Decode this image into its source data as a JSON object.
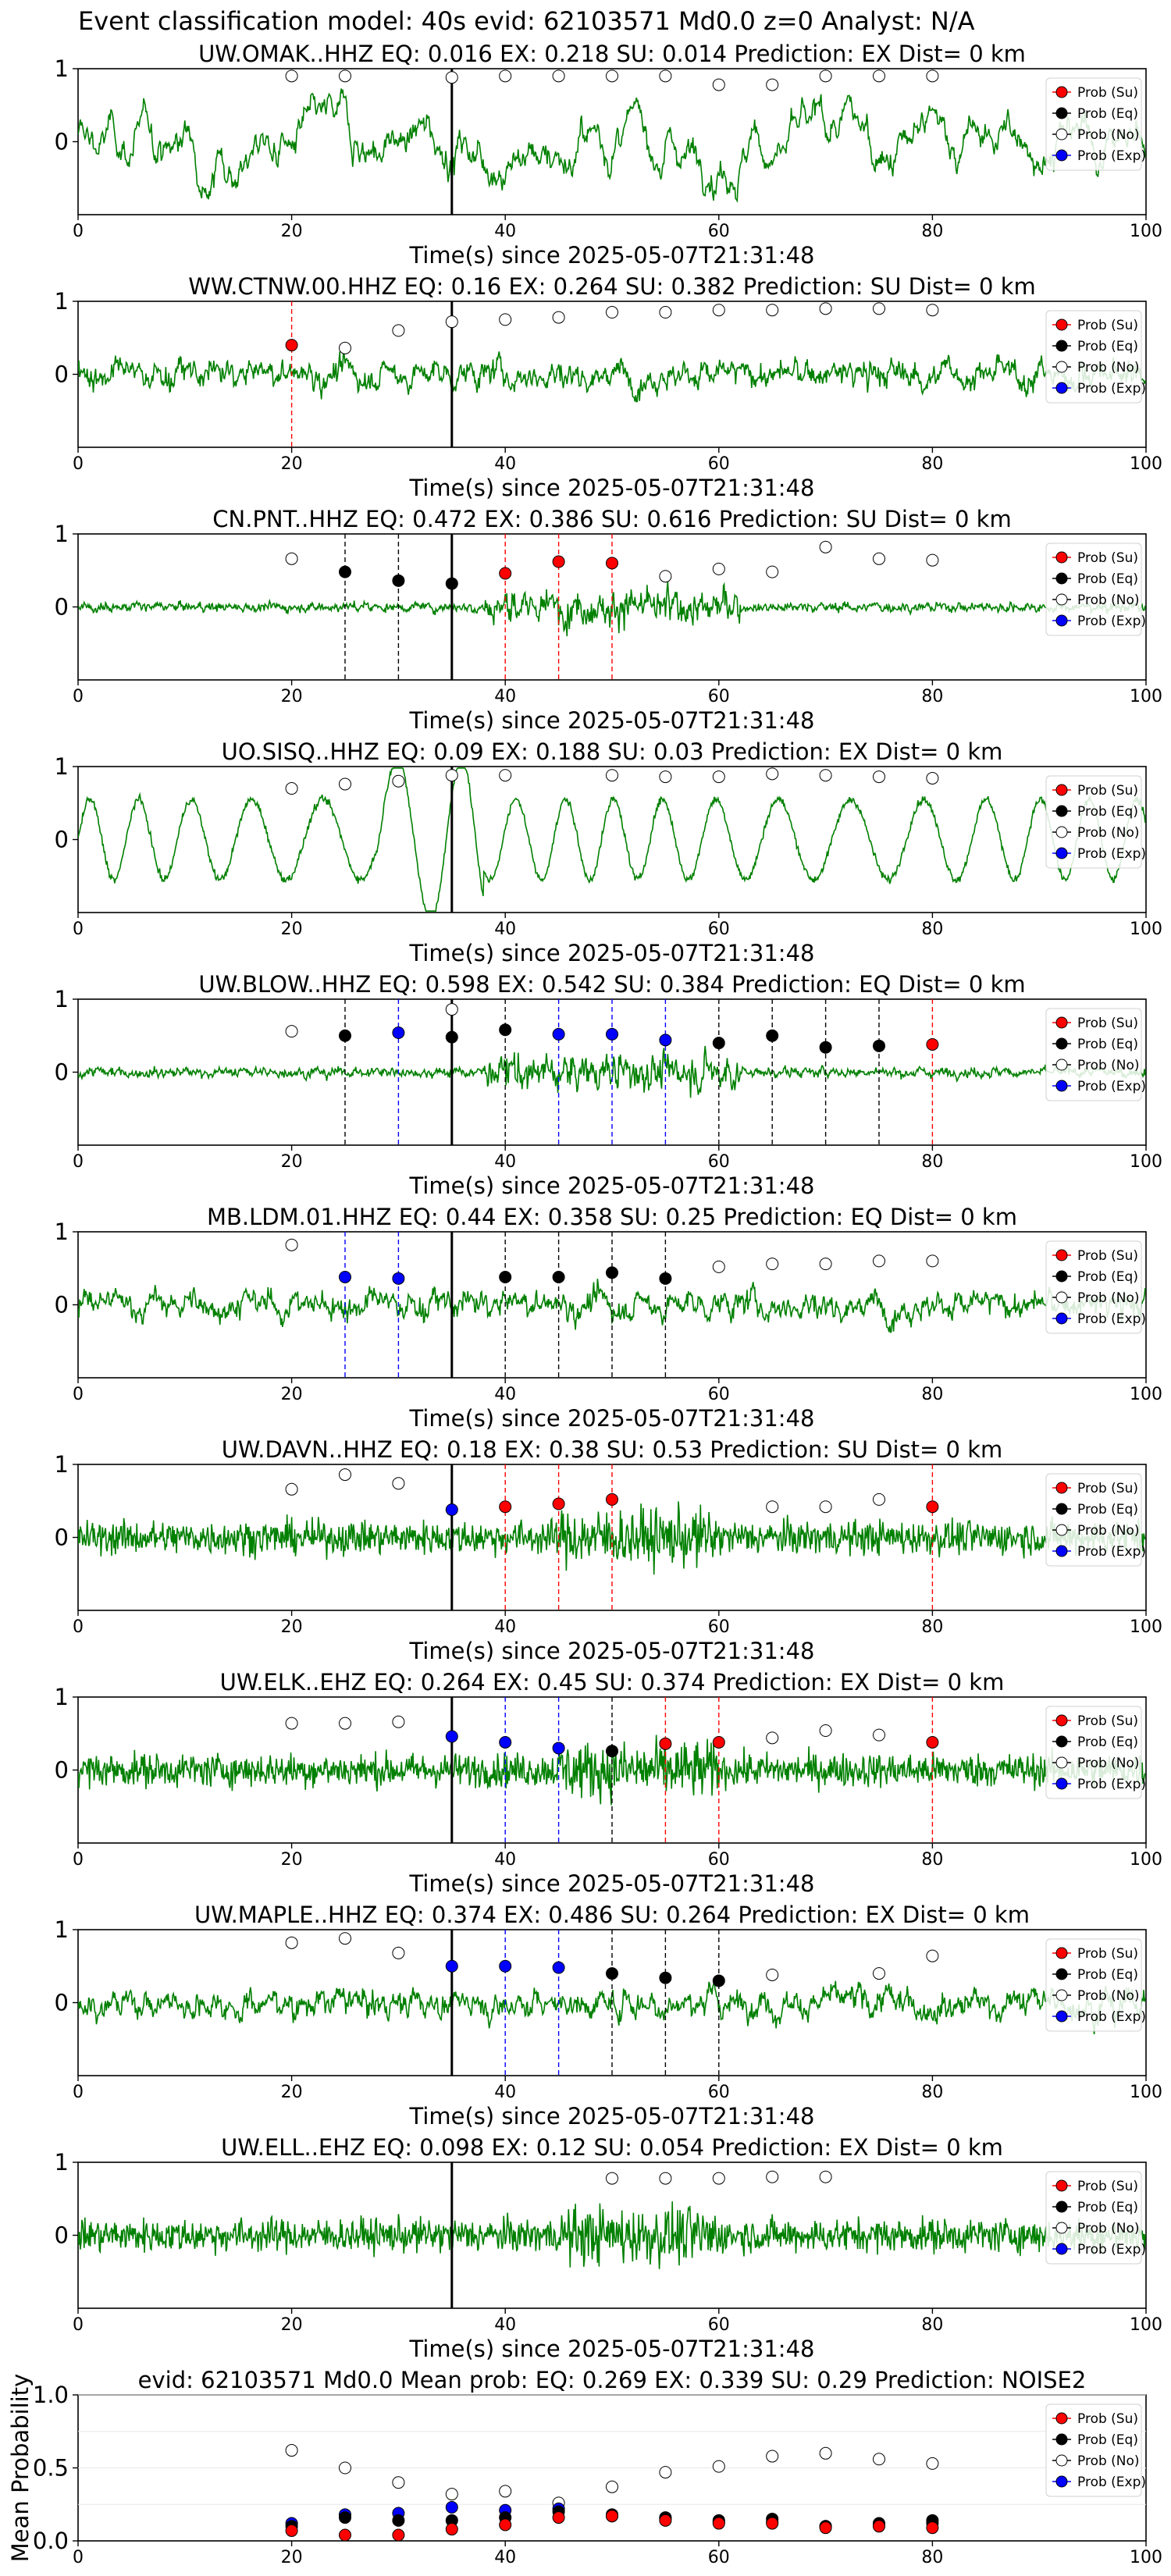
{
  "figure_title": "Event classification model: 40s evid: 62103571 Md0.0 z=0 Analyst: N/A",
  "x_axis_label": "Time(s) since 2025-05-07T21:31:48",
  "legend_labels": [
    "Prob (Su)",
    "Prob (Eq)",
    "Prob (No)",
    "Prob (Exp)"
  ],
  "colors": {
    "waveform": "#008000",
    "su": "#ff0000",
    "eq": "#000000",
    "no": "#ffffff",
    "exp": "#0000ff",
    "event_line": "#000000"
  },
  "chart_data": [
    {
      "type": "line",
      "title": "UW.OMAK..HHZ   EQ: 0.016  EX: 0.218  SU: 0.014   Prediction: EX    Dist= 0 km",
      "xlim": [
        0,
        100
      ],
      "ylim": [
        -1,
        1
      ],
      "xticks": [
        0,
        20,
        40,
        60,
        80,
        100
      ],
      "yticks": [
        1,
        0
      ],
      "xlabel": "Time(s) since 2025-05-07T21:31:48",
      "event_time": 35,
      "waveform_style": "lowfreq",
      "points": {
        "no": [
          [
            20,
            0.9
          ],
          [
            25,
            0.9
          ],
          [
            35,
            0.88
          ],
          [
            40,
            0.9
          ],
          [
            45,
            0.9
          ],
          [
            50,
            0.9
          ],
          [
            55,
            0.9
          ],
          [
            60,
            0.78
          ],
          [
            65,
            0.78
          ],
          [
            70,
            0.9
          ],
          [
            75,
            0.9
          ],
          [
            80,
            0.9
          ]
        ],
        "su": [],
        "eq": [],
        "exp": []
      },
      "vlines": []
    },
    {
      "type": "line",
      "title": "WW.CTNW.00.HHZ   EQ: 0.16  EX: 0.264  SU: 0.382   Prediction: SU    Dist= 0 km",
      "xlim": [
        0,
        100
      ],
      "ylim": [
        -1,
        1
      ],
      "xticks": [
        0,
        20,
        40,
        60,
        80,
        100
      ],
      "yticks": [
        1,
        0
      ],
      "xlabel": "Time(s) since 2025-05-07T21:31:48",
      "event_time": 35,
      "waveform_style": "mixed",
      "points": {
        "no": [
          [
            25,
            0.36
          ],
          [
            30,
            0.6
          ],
          [
            35,
            0.72
          ],
          [
            40,
            0.75
          ],
          [
            45,
            0.78
          ],
          [
            50,
            0.85
          ],
          [
            55,
            0.85
          ],
          [
            60,
            0.88
          ],
          [
            65,
            0.88
          ],
          [
            70,
            0.9
          ],
          [
            75,
            0.9
          ],
          [
            80,
            0.88
          ]
        ],
        "su": [
          [
            20,
            0.4
          ]
        ],
        "eq": [],
        "exp": []
      },
      "vlines": [
        {
          "x": 20,
          "cls": "su"
        }
      ]
    },
    {
      "type": "line",
      "title": "CN.PNT..HHZ   EQ: 0.472  EX: 0.386  SU: 0.616   Prediction: SU    Dist= 0 km",
      "xlim": [
        0,
        100
      ],
      "ylim": [
        -1,
        1
      ],
      "xticks": [
        0,
        20,
        40,
        60,
        80,
        100
      ],
      "yticks": [
        1,
        0
      ],
      "xlabel": "Time(s) since 2025-05-07T21:31:48",
      "event_time": 35,
      "waveform_style": "burst",
      "points": {
        "no": [
          [
            20,
            0.66
          ],
          [
            55,
            0.42
          ],
          [
            60,
            0.52
          ],
          [
            65,
            0.48
          ],
          [
            70,
            0.82
          ],
          [
            75,
            0.66
          ],
          [
            80,
            0.64
          ]
        ],
        "su": [
          [
            40,
            0.46
          ],
          [
            45,
            0.62
          ],
          [
            50,
            0.6
          ]
        ],
        "eq": [
          [
            25,
            0.48
          ],
          [
            30,
            0.36
          ],
          [
            35,
            0.32
          ]
        ],
        "exp": []
      },
      "vlines": [
        {
          "x": 25,
          "cls": "eq"
        },
        {
          "x": 30,
          "cls": "eq"
        },
        {
          "x": 40,
          "cls": "su"
        },
        {
          "x": 45,
          "cls": "su"
        },
        {
          "x": 50,
          "cls": "su"
        }
      ]
    },
    {
      "type": "line",
      "title": "UO.SISQ..HHZ   EQ: 0.09  EX: 0.188  SU: 0.03   Prediction: EX    Dist= 0 km",
      "xlim": [
        0,
        100
      ],
      "ylim": [
        -1,
        1
      ],
      "xticks": [
        0,
        20,
        40,
        60,
        80,
        100
      ],
      "yticks": [
        1,
        0
      ],
      "xlabel": "Time(s) since 2025-05-07T21:31:48",
      "event_time": 35,
      "waveform_style": "oscillating",
      "points": {
        "no": [
          [
            20,
            0.7
          ],
          [
            25,
            0.76
          ],
          [
            30,
            0.8
          ],
          [
            35,
            0.88
          ],
          [
            40,
            0.88
          ],
          [
            50,
            0.88
          ],
          [
            55,
            0.86
          ],
          [
            60,
            0.86
          ],
          [
            65,
            0.9
          ],
          [
            70,
            0.88
          ],
          [
            75,
            0.86
          ],
          [
            80,
            0.84
          ]
        ],
        "su": [],
        "eq": [],
        "exp": []
      },
      "vlines": []
    },
    {
      "type": "line",
      "title": "UW.BLOW..HHZ   EQ: 0.598  EX: 0.542  SU: 0.384   Prediction: EQ    Dist= 0 km",
      "xlim": [
        0,
        100
      ],
      "ylim": [
        -1,
        1
      ],
      "xticks": [
        0,
        20,
        40,
        60,
        80,
        100
      ],
      "yticks": [
        1,
        0
      ],
      "xlabel": "Time(s) since 2025-05-07T21:31:48",
      "event_time": 35,
      "waveform_style": "burst",
      "points": {
        "no": [
          [
            20,
            0.56
          ],
          [
            35,
            0.86
          ]
        ],
        "su": [
          [
            80,
            0.38
          ]
        ],
        "eq": [
          [
            25,
            0.5
          ],
          [
            35,
            0.48
          ],
          [
            40,
            0.58
          ],
          [
            60,
            0.4
          ],
          [
            65,
            0.5
          ],
          [
            70,
            0.34
          ],
          [
            75,
            0.36
          ]
        ],
        "exp": [
          [
            30,
            0.54
          ],
          [
            45,
            0.52
          ],
          [
            50,
            0.52
          ],
          [
            55,
            0.44
          ]
        ]
      },
      "vlines": [
        {
          "x": 25,
          "cls": "eq"
        },
        {
          "x": 30,
          "cls": "exp"
        },
        {
          "x": 40,
          "cls": "eq"
        },
        {
          "x": 45,
          "cls": "exp"
        },
        {
          "x": 50,
          "cls": "exp"
        },
        {
          "x": 55,
          "cls": "exp"
        },
        {
          "x": 60,
          "cls": "eq"
        },
        {
          "x": 65,
          "cls": "eq"
        },
        {
          "x": 70,
          "cls": "eq"
        },
        {
          "x": 75,
          "cls": "eq"
        },
        {
          "x": 80,
          "cls": "su"
        }
      ]
    },
    {
      "type": "line",
      "title": "MB.LDM.01.HHZ   EQ: 0.44  EX: 0.358  SU: 0.25   Prediction: EQ    Dist= 0 km",
      "xlim": [
        0,
        100
      ],
      "ylim": [
        -1,
        1
      ],
      "xticks": [
        0,
        20,
        40,
        60,
        80,
        100
      ],
      "yticks": [
        1,
        0
      ],
      "xlabel": "Time(s) since 2025-05-07T21:31:48",
      "event_time": 35,
      "waveform_style": "mixed",
      "points": {
        "no": [
          [
            20,
            0.82
          ],
          [
            60,
            0.52
          ],
          [
            65,
            0.56
          ],
          [
            70,
            0.56
          ],
          [
            75,
            0.6
          ],
          [
            80,
            0.6
          ]
        ],
        "su": [],
        "eq": [
          [
            40,
            0.38
          ],
          [
            45,
            0.38
          ],
          [
            50,
            0.44
          ],
          [
            55,
            0.36
          ]
        ],
        "exp": [
          [
            25,
            0.38
          ],
          [
            30,
            0.36
          ]
        ]
      },
      "vlines": [
        {
          "x": 25,
          "cls": "exp"
        },
        {
          "x": 30,
          "cls": "exp"
        },
        {
          "x": 40,
          "cls": "eq"
        },
        {
          "x": 45,
          "cls": "eq"
        },
        {
          "x": 50,
          "cls": "eq"
        },
        {
          "x": 55,
          "cls": "eq"
        }
      ]
    },
    {
      "type": "line",
      "title": "UW.DAVN..HHZ   EQ: 0.18  EX: 0.38  SU: 0.53   Prediction: SU    Dist= 0 km",
      "xlim": [
        0,
        100
      ],
      "ylim": [
        -1,
        1
      ],
      "xticks": [
        0,
        20,
        40,
        60,
        80,
        100
      ],
      "yticks": [
        1,
        0
      ],
      "xlabel": "Time(s) since 2025-05-07T21:31:48",
      "event_time": 35,
      "waveform_style": "dense",
      "points": {
        "no": [
          [
            20,
            0.66
          ],
          [
            25,
            0.86
          ],
          [
            30,
            0.74
          ],
          [
            65,
            0.42
          ],
          [
            70,
            0.42
          ],
          [
            75,
            0.52
          ]
        ],
        "su": [
          [
            40,
            0.42
          ],
          [
            45,
            0.46
          ],
          [
            50,
            0.52
          ],
          [
            80,
            0.42
          ]
        ],
        "eq": [],
        "exp": [
          [
            35,
            0.38
          ]
        ]
      },
      "vlines": [
        {
          "x": 40,
          "cls": "su"
        },
        {
          "x": 45,
          "cls": "su"
        },
        {
          "x": 50,
          "cls": "su"
        },
        {
          "x": 80,
          "cls": "su"
        }
      ]
    },
    {
      "type": "line",
      "title": "UW.ELK..EHZ   EQ: 0.264  EX: 0.45  SU: 0.374   Prediction: EX    Dist= 0 km",
      "xlim": [
        0,
        100
      ],
      "ylim": [
        -1,
        1
      ],
      "xticks": [
        0,
        20,
        40,
        60,
        80,
        100
      ],
      "yticks": [
        1,
        0
      ],
      "xlabel": "Time(s) since 2025-05-07T21:31:48",
      "event_time": 35,
      "waveform_style": "dense",
      "points": {
        "no": [
          [
            20,
            0.64
          ],
          [
            25,
            0.64
          ],
          [
            30,
            0.66
          ],
          [
            65,
            0.44
          ],
          [
            70,
            0.54
          ],
          [
            75,
            0.48
          ]
        ],
        "su": [
          [
            55,
            0.36
          ],
          [
            60,
            0.38
          ],
          [
            80,
            0.38
          ]
        ],
        "eq": [
          [
            50,
            0.26
          ]
        ],
        "exp": [
          [
            35,
            0.46
          ],
          [
            40,
            0.38
          ],
          [
            45,
            0.3
          ]
        ]
      },
      "vlines": [
        {
          "x": 40,
          "cls": "exp"
        },
        {
          "x": 45,
          "cls": "exp"
        },
        {
          "x": 50,
          "cls": "eq"
        },
        {
          "x": 55,
          "cls": "su"
        },
        {
          "x": 60,
          "cls": "su"
        },
        {
          "x": 80,
          "cls": "su"
        }
      ]
    },
    {
      "type": "line",
      "title": "UW.MAPLE..HHZ   EQ: 0.374  EX: 0.486  SU: 0.264   Prediction: EX    Dist= 0 km",
      "xlim": [
        0,
        100
      ],
      "ylim": [
        -1,
        1
      ],
      "xticks": [
        0,
        20,
        40,
        60,
        80,
        100
      ],
      "yticks": [
        1,
        0
      ],
      "xlabel": "Time(s) since 2025-05-07T21:31:48",
      "event_time": 35,
      "waveform_style": "mixed",
      "points": {
        "no": [
          [
            20,
            0.82
          ],
          [
            25,
            0.88
          ],
          [
            30,
            0.68
          ],
          [
            65,
            0.38
          ],
          [
            75,
            0.4
          ],
          [
            80,
            0.64
          ]
        ],
        "su": [],
        "eq": [
          [
            50,
            0.4
          ],
          [
            55,
            0.34
          ],
          [
            60,
            0.3
          ]
        ],
        "exp": [
          [
            35,
            0.5
          ],
          [
            40,
            0.5
          ],
          [
            45,
            0.48
          ]
        ]
      },
      "vlines": [
        {
          "x": 40,
          "cls": "exp"
        },
        {
          "x": 45,
          "cls": "exp"
        },
        {
          "x": 50,
          "cls": "eq"
        },
        {
          "x": 55,
          "cls": "eq"
        },
        {
          "x": 60,
          "cls": "eq"
        }
      ]
    },
    {
      "type": "line",
      "title": "UW.ELL..EHZ   EQ: 0.098  EX: 0.12  SU: 0.054   Prediction: EX    Dist= 0 km",
      "xlim": [
        0,
        100
      ],
      "ylim": [
        -1,
        1
      ],
      "xticks": [
        0,
        20,
        40,
        60,
        80,
        100
      ],
      "yticks": [
        1,
        0
      ],
      "xlabel": "Time(s) since 2025-05-07T21:31:48",
      "event_time": 35,
      "waveform_style": "dense",
      "points": {
        "no": [
          [
            50,
            0.78
          ],
          [
            55,
            0.78
          ],
          [
            60,
            0.78
          ],
          [
            65,
            0.8
          ],
          [
            70,
            0.8
          ]
        ],
        "su": [],
        "eq": [],
        "exp": []
      },
      "vlines": []
    },
    {
      "type": "scatter",
      "title": "evid: 62103571  Md0.0   Mean prob:   EQ: 0.269  EX: 0.339  SU: 0.29   Prediction: NOISE2",
      "xlim": [
        0,
        100
      ],
      "ylim": [
        0,
        1
      ],
      "xticks": [
        0,
        20,
        40,
        60,
        80,
        100
      ],
      "yticks": [
        1.0,
        0.5,
        0.0
      ],
      "yticklabels": [
        "1.0",
        "0.5",
        "0.0"
      ],
      "ylabel": "Mean Probability",
      "points": {
        "no": [
          [
            20,
            0.62
          ],
          [
            25,
            0.5
          ],
          [
            30,
            0.4
          ],
          [
            35,
            0.32
          ],
          [
            40,
            0.34
          ],
          [
            45,
            0.26
          ],
          [
            50,
            0.37
          ],
          [
            55,
            0.47
          ],
          [
            60,
            0.51
          ],
          [
            65,
            0.58
          ],
          [
            70,
            0.6
          ],
          [
            75,
            0.56
          ],
          [
            80,
            0.53
          ]
        ],
        "su": [
          [
            20,
            0.07
          ],
          [
            25,
            0.04
          ],
          [
            30,
            0.04
          ],
          [
            35,
            0.08
          ],
          [
            40,
            0.11
          ],
          [
            45,
            0.16
          ],
          [
            50,
            0.17
          ],
          [
            55,
            0.14
          ],
          [
            60,
            0.12
          ],
          [
            65,
            0.12
          ],
          [
            70,
            0.09
          ],
          [
            75,
            0.1
          ],
          [
            80,
            0.09
          ]
        ],
        "eq": [
          [
            20,
            0.1
          ],
          [
            25,
            0.16
          ],
          [
            30,
            0.14
          ],
          [
            35,
            0.14
          ],
          [
            40,
            0.16
          ],
          [
            45,
            0.2
          ],
          [
            50,
            0.18
          ],
          [
            55,
            0.16
          ],
          [
            60,
            0.14
          ],
          [
            65,
            0.15
          ],
          [
            70,
            0.1
          ],
          [
            75,
            0.12
          ],
          [
            80,
            0.14
          ]
        ],
        "exp": [
          [
            20,
            0.12
          ],
          [
            25,
            0.18
          ],
          [
            30,
            0.19
          ],
          [
            35,
            0.23
          ],
          [
            40,
            0.21
          ],
          [
            45,
            0.22
          ],
          [
            50,
            0.17
          ],
          [
            55,
            0.15
          ],
          [
            60,
            0.13
          ],
          [
            65,
            0.13
          ],
          [
            70,
            0.1
          ],
          [
            75,
            0.11
          ],
          [
            80,
            0.12
          ]
        ]
      }
    }
  ]
}
